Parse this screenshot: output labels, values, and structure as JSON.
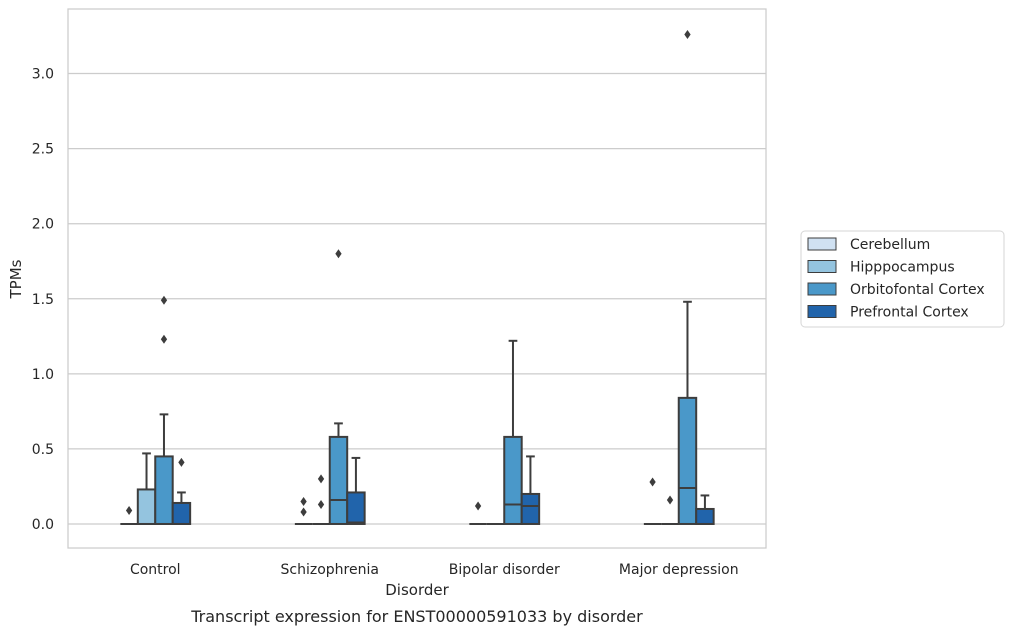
{
  "chart_data": {
    "type": "box",
    "title": "Transcript expression for ENST00000591033 by disorder",
    "xlabel": "Disorder",
    "ylabel": "TPMs",
    "categories": [
      "Control",
      "Schizophrenia",
      "Bipolar disorder",
      "Major depression"
    ],
    "ylim": [
      -0.16,
      3.43
    ],
    "yticks": [
      "0.0",
      "0.5",
      "1.0",
      "1.5",
      "2.0",
      "2.5",
      "3.0"
    ],
    "grid": true,
    "legend_position": "right",
    "series": [
      {
        "name": "Cerebellum",
        "color": "#d0e1f2",
        "boxes": [
          {
            "whisker_low": 0,
            "q1": 0,
            "median": 0,
            "q3": 0,
            "whisker_high": 0,
            "outliers": [
              0.09
            ]
          },
          {
            "whisker_low": 0,
            "q1": 0,
            "median": 0,
            "q3": 0,
            "whisker_high": 0,
            "outliers": [
              0.08,
              0.15
            ]
          },
          {
            "whisker_low": 0,
            "q1": 0,
            "median": 0,
            "q3": 0,
            "whisker_high": 0,
            "outliers": [
              0.12
            ]
          },
          {
            "whisker_low": 0,
            "q1": 0,
            "median": 0,
            "q3": 0,
            "whisker_high": 0,
            "outliers": [
              0.28
            ]
          }
        ]
      },
      {
        "name": "Hipppocampus",
        "color": "#94c4df",
        "boxes": [
          {
            "whisker_low": 0,
            "q1": 0,
            "median": 0,
            "q3": 0.23,
            "whisker_high": 0.47,
            "outliers": []
          },
          {
            "whisker_low": 0,
            "q1": 0,
            "median": 0,
            "q3": 0,
            "whisker_high": 0,
            "outliers": [
              0.13,
              0.3
            ]
          },
          {
            "whisker_low": 0,
            "q1": 0,
            "median": 0,
            "q3": 0,
            "whisker_high": 0,
            "outliers": []
          },
          {
            "whisker_low": 0,
            "q1": 0,
            "median": 0,
            "q3": 0,
            "whisker_high": 0,
            "outliers": [
              0.16
            ]
          }
        ]
      },
      {
        "name": "Orbitofontal Cortex",
        "color": "#4a98c9",
        "boxes": [
          {
            "whisker_low": 0,
            "q1": 0,
            "median": 0,
            "q3": 0.45,
            "whisker_high": 0.73,
            "outliers": [
              1.23,
              1.49
            ]
          },
          {
            "whisker_low": 0,
            "q1": 0,
            "median": 0.16,
            "q3": 0.58,
            "whisker_high": 0.67,
            "outliers": [
              1.8
            ]
          },
          {
            "whisker_low": 0,
            "q1": 0,
            "median": 0.13,
            "q3": 0.58,
            "whisker_high": 1.22,
            "outliers": []
          },
          {
            "whisker_low": 0,
            "q1": 0,
            "median": 0.24,
            "q3": 0.84,
            "whisker_high": 1.48,
            "outliers": [
              3.26
            ]
          }
        ]
      },
      {
        "name": "Prefrontal Cortex",
        "color": "#2164ab",
        "boxes": [
          {
            "whisker_low": 0,
            "q1": 0,
            "median": 0,
            "q3": 0.14,
            "whisker_high": 0.21,
            "outliers": [
              0.41
            ]
          },
          {
            "whisker_low": 0,
            "q1": 0,
            "median": 0.01,
            "q3": 0.21,
            "whisker_high": 0.44,
            "outliers": []
          },
          {
            "whisker_low": 0,
            "q1": 0,
            "median": 0.12,
            "q3": 0.2,
            "whisker_high": 0.45,
            "outliers": []
          },
          {
            "whisker_low": 0,
            "q1": 0,
            "median": 0,
            "q3": 0.1,
            "whisker_high": 0.19,
            "outliers": []
          }
        ]
      }
    ]
  }
}
